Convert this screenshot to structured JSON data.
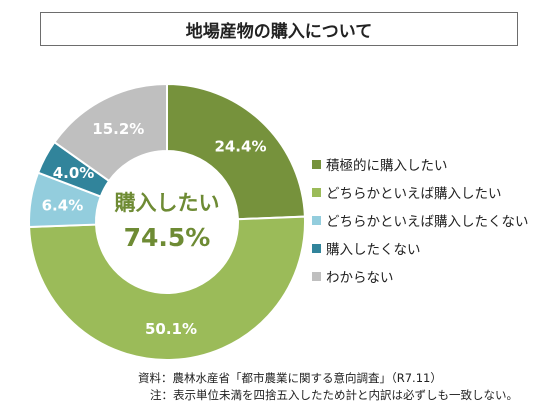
{
  "title": "地場産物の購入について",
  "center": {
    "line1": "購入したい",
    "line2": "74.5%",
    "color": "#6e8b34"
  },
  "chart_data": {
    "type": "pie",
    "variant": "donut",
    "title": "地場産物の購入について",
    "slices": [
      {
        "label": "積極的に購入したい",
        "value": 24.4,
        "value_label": "24.4%",
        "color": "#76923c"
      },
      {
        "label": "どちらかといえば購入したい",
        "value": 50.1,
        "value_label": "50.1%",
        "color": "#9bbb59"
      },
      {
        "label": "どちらかといえば購入したくない",
        "value": 6.4,
        "value_label": "6.4%",
        "color": "#93cddd"
      },
      {
        "label": "購入したくない",
        "value": 4.0,
        "value_label": "4.0%",
        "color": "#31849b"
      },
      {
        "label": "わからない",
        "value": 15.2,
        "value_label": "15.2%",
        "color": "#bfbfbf"
      }
    ],
    "legend_position": "right"
  },
  "source": {
    "line1": "資料：農林水産省「都市農業に関する意向調査」（R7.11）",
    "line2": "注：表示単位未満を四捨五入したため計と内訳は必ずしも一致しない。"
  }
}
